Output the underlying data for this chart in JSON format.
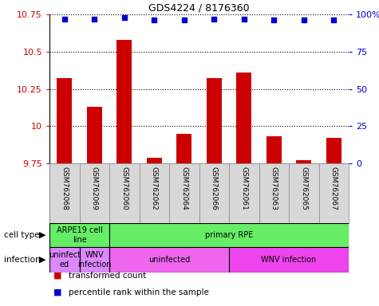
{
  "title": "GDS4224 / 8176360",
  "samples": [
    "GSM762068",
    "GSM762069",
    "GSM762060",
    "GSM762062",
    "GSM762064",
    "GSM762066",
    "GSM762061",
    "GSM762063",
    "GSM762065",
    "GSM762067"
  ],
  "transformed_counts": [
    10.32,
    10.13,
    10.58,
    9.79,
    9.95,
    10.32,
    10.36,
    9.93,
    9.77,
    9.92
  ],
  "percentile_ranks": [
    97,
    97,
    98,
    96,
    96,
    97,
    97,
    96,
    96,
    96
  ],
  "ylim": [
    9.75,
    10.75
  ],
  "y_ticks": [
    9.75,
    10.0,
    10.25,
    10.5,
    10.75
  ],
  "right_ylim": [
    0,
    100
  ],
  "right_yticks": [
    0,
    25,
    50,
    75,
    100
  ],
  "bar_color": "#cc0000",
  "dot_color": "#0000cc",
  "bg_label_color": "#d8d8d8",
  "cell_type_segments": [
    {
      "text": "ARPE19 cell\nline",
      "start": 0,
      "end": 2,
      "color": "#66ee66"
    },
    {
      "text": "primary RPE",
      "start": 2,
      "end": 10,
      "color": "#66ee66"
    }
  ],
  "infection_segments": [
    {
      "text": "uninfect\ned",
      "start": 0,
      "end": 1,
      "color": "#dd88ff"
    },
    {
      "text": "WNV\ninfection",
      "start": 1,
      "end": 2,
      "color": "#dd88ff"
    },
    {
      "text": "uninfected",
      "start": 2,
      "end": 6,
      "color": "#ee66ee"
    },
    {
      "text": "WNV infection",
      "start": 6,
      "end": 10,
      "color": "#ee44ee"
    }
  ],
  "left_tick_color": "#cc0000",
  "right_tick_color": "#0000cc"
}
